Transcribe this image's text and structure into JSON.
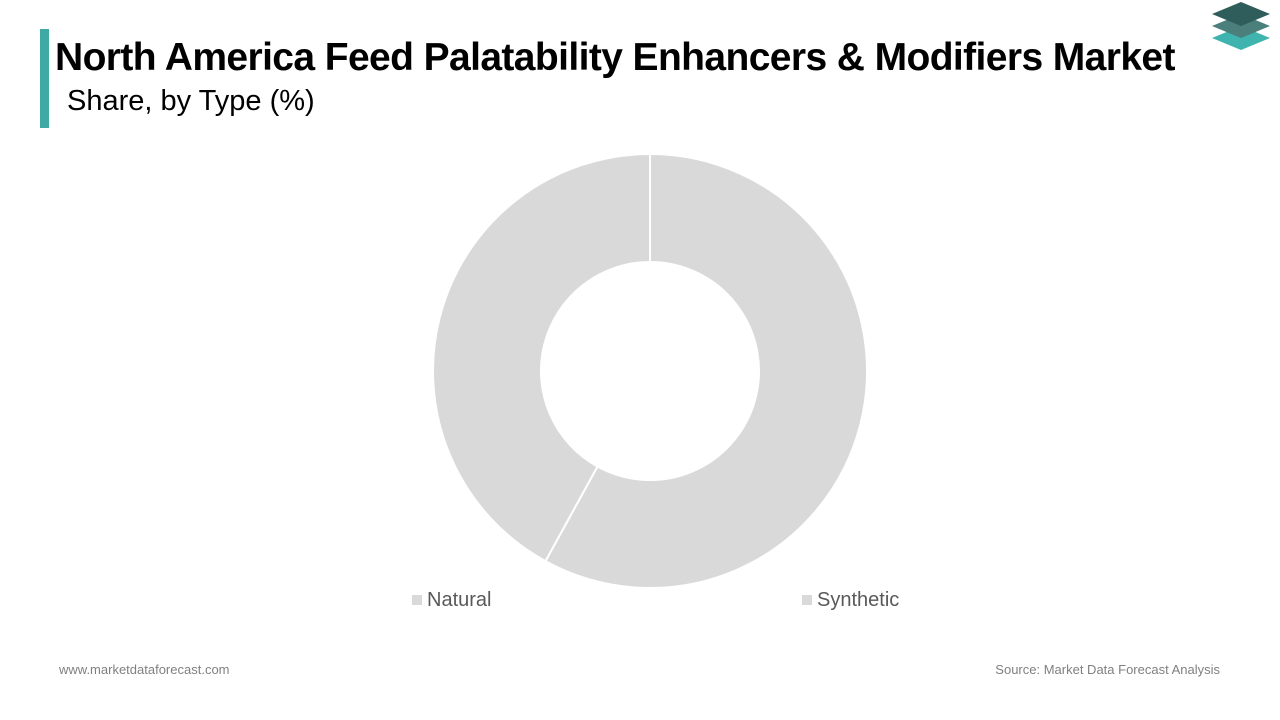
{
  "header": {
    "title": "North America Feed Palatability Enhancers & Modifiers Market",
    "subtitle": "Share, by Type (%)"
  },
  "logo": {
    "icon": "stacked-layers-icon",
    "colors": [
      "#2f5d5b",
      "#4a7f7c",
      "#3fb3ad"
    ]
  },
  "chart_data": {
    "type": "pie",
    "donut": true,
    "title": "North America Feed Palatability Enhancers & Modifiers Market",
    "subtitle": "Share, by Type (%)",
    "categories": [
      "Synthetic",
      "Natural"
    ],
    "values": [
      58,
      42
    ],
    "legend": {
      "placement": "bottom",
      "order": [
        "Natural",
        "Synthetic"
      ]
    },
    "colors": {
      "slice_fill": "#d9d9d9",
      "slice_border": "#ffffff",
      "legend_marker": "#d9d9d9",
      "legend_text": "#595959"
    }
  },
  "footer": {
    "website": "www.marketdataforecast.com",
    "source": "Source: Market Data Forecast Analysis"
  },
  "colors": {
    "accent": "#3fa9a6",
    "title": "#000000",
    "footer": "#808080"
  }
}
